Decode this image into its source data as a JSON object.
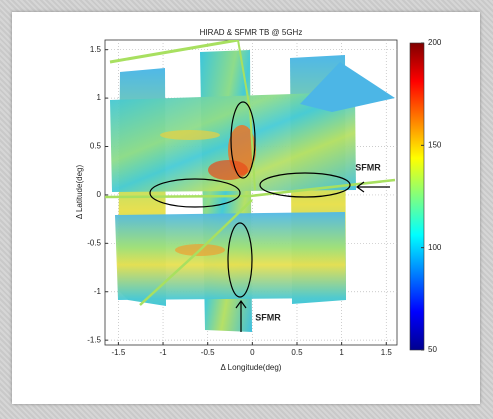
{
  "chart_data": {
    "type": "heatmap",
    "title": "HIRAD & SFMR TB @ 5GHz",
    "xlabel": "Δ Longitude(deg)",
    "ylabel": "Δ Latitude(deg)",
    "xlim": [
      -1.65,
      1.62
    ],
    "ylim": [
      -1.55,
      1.6
    ],
    "xticks": [
      -1.5,
      -1,
      -0.5,
      0,
      0.5,
      1,
      1.5
    ],
    "yticks": [
      -1.5,
      -1,
      -0.5,
      0,
      0.5,
      1,
      1.5
    ],
    "grid": true,
    "colorbar": {
      "clim": [
        50,
        200
      ],
      "ticks": [
        50,
        100,
        150,
        200
      ]
    },
    "annotations": [
      "SFMR",
      "SFMR"
    ]
  }
}
